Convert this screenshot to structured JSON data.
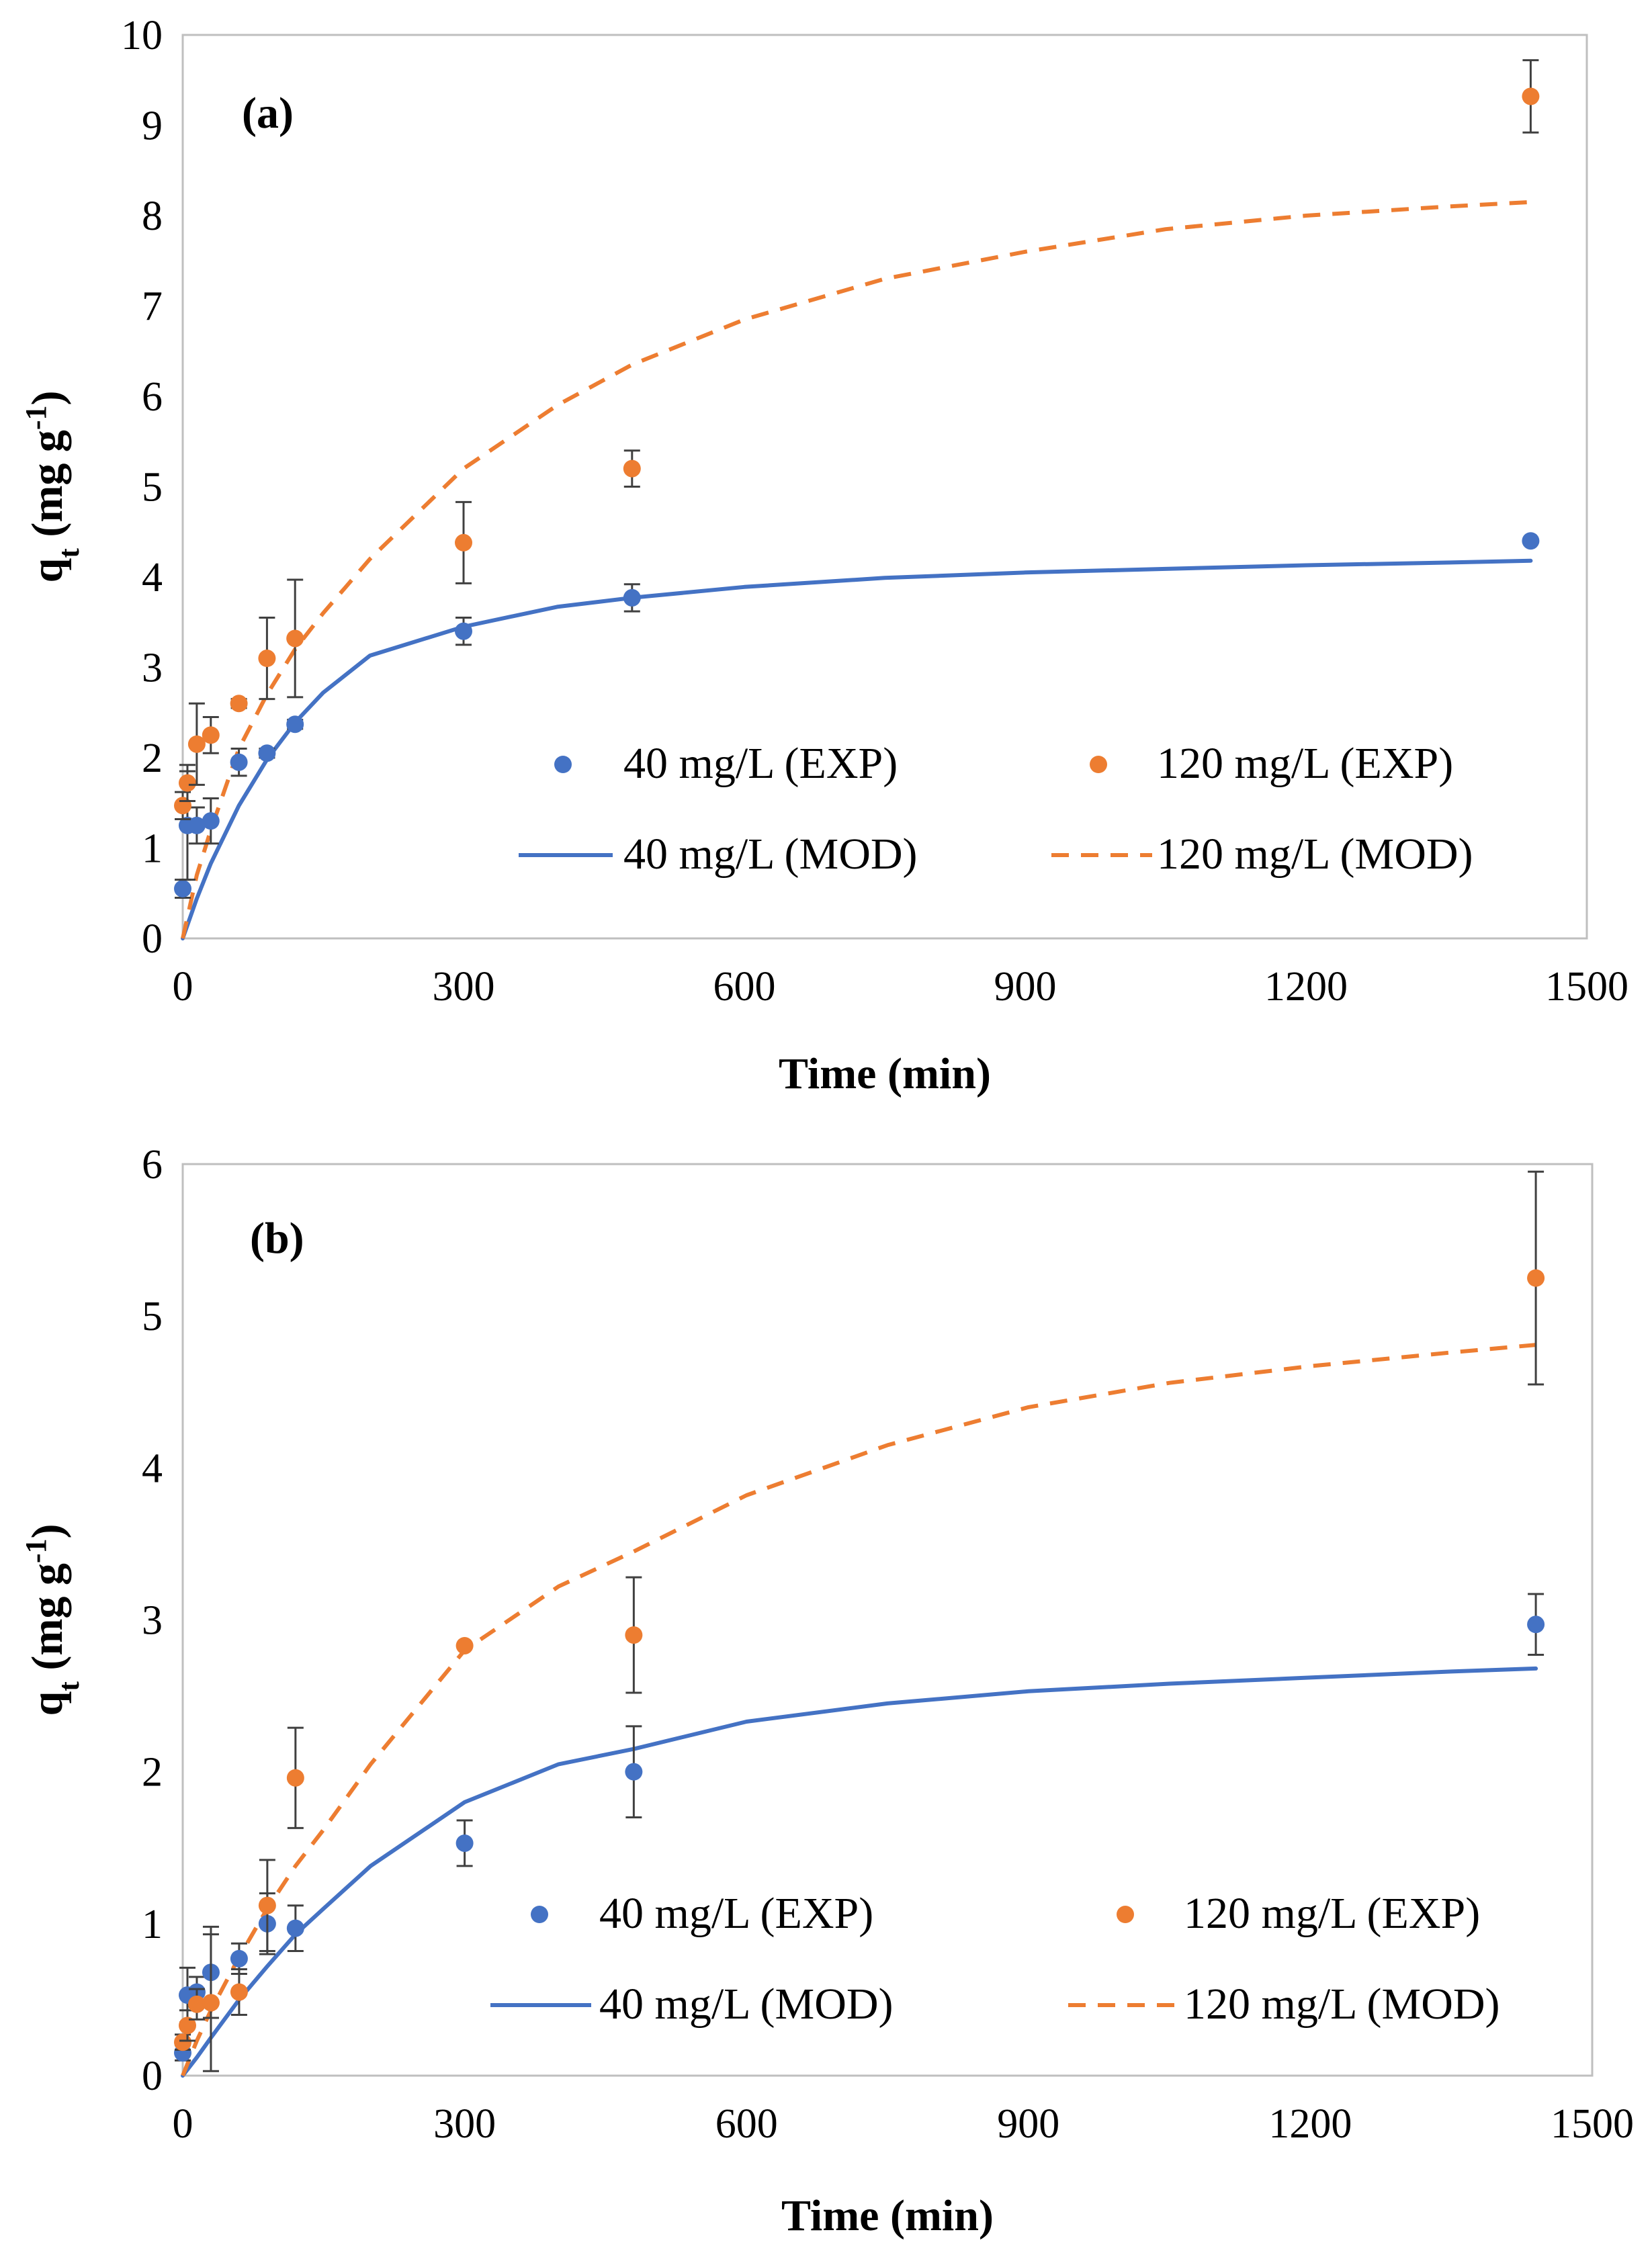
{
  "chart_data": [
    {
      "type": "scatter",
      "panel_label": "(a)",
      "xlabel": "Time (min)",
      "ylabel": "qt (mg g-1)",
      "ylabel_main": "q",
      "ylabel_sub": "t",
      "ylabel_rest": " (mg g",
      "ylabel_sup": "-1",
      "ylabel_close": ")",
      "xlim": [
        0,
        1500
      ],
      "ylim": [
        0,
        10
      ],
      "xticks": [
        0,
        300,
        600,
        900,
        1200,
        1500
      ],
      "yticks": [
        0,
        1,
        2,
        3,
        4,
        5,
        6,
        7,
        8,
        9,
        10
      ],
      "grid": false,
      "legend_position": "lower-right",
      "legend": [
        "40 mg/L (EXP)",
        "120 mg/L (EXP)",
        "40 mg/L (MOD)",
        "120 mg/L (MOD)"
      ],
      "series": [
        {
          "name": "40 mg/L (EXP)",
          "kind": "points",
          "color": "#4472c4",
          "points": [
            {
              "x": 0,
              "y": 0.55,
              "err": 0.1
            },
            {
              "x": 5,
              "y": 1.25,
              "err": 0.6
            },
            {
              "x": 15,
              "y": 1.25,
              "err": 0.2
            },
            {
              "x": 30,
              "y": 1.3,
              "err": 0.25
            },
            {
              "x": 60,
              "y": 1.95,
              "err": 0.15
            },
            {
              "x": 90,
              "y": 2.05,
              "err": 0.05
            },
            {
              "x": 120,
              "y": 2.37,
              "err": 0.05
            },
            {
              "x": 300,
              "y": 3.4,
              "err": 0.15
            },
            {
              "x": 480,
              "y": 3.77,
              "err": 0.15
            },
            {
              "x": 1440,
              "y": 4.4,
              "err": 0
            }
          ]
        },
        {
          "name": "120 mg/L (EXP)",
          "kind": "points",
          "color": "#ed7d31",
          "points": [
            {
              "x": 0,
              "y": 1.47,
              "err": 0.15
            },
            {
              "x": 5,
              "y": 1.72,
              "err": 0.2
            },
            {
              "x": 15,
              "y": 2.15,
              "err": 0.45
            },
            {
              "x": 30,
              "y": 2.25,
              "err": 0.2
            },
            {
              "x": 60,
              "y": 2.6,
              "err": 0.05
            },
            {
              "x": 90,
              "y": 3.1,
              "err": 0.45
            },
            {
              "x": 120,
              "y": 3.32,
              "err": 0.65
            },
            {
              "x": 300,
              "y": 4.38,
              "err": 0.45
            },
            {
              "x": 480,
              "y": 5.2,
              "err": 0.2
            },
            {
              "x": 1440,
              "y": 9.32,
              "err": 0.4
            }
          ]
        },
        {
          "name": "40 mg/L (MOD)",
          "kind": "curve",
          "style": "solid",
          "color": "#4472c4",
          "x": [
            0,
            15,
            30,
            60,
            90,
            120,
            150,
            200,
            300,
            400,
            480,
            600,
            750,
            900,
            1050,
            1200,
            1350,
            1440
          ],
          "y": [
            0.0,
            0.44,
            0.83,
            1.47,
            1.98,
            2.39,
            2.72,
            3.13,
            3.45,
            3.67,
            3.77,
            3.89,
            3.99,
            4.05,
            4.09,
            4.13,
            4.16,
            4.18
          ]
        },
        {
          "name": "120 mg/L (MOD)",
          "kind": "curve",
          "style": "dashed",
          "color": "#ed7d31",
          "x": [
            0,
            15,
            30,
            60,
            90,
            120,
            150,
            200,
            300,
            400,
            480,
            600,
            750,
            900,
            1050,
            1200,
            1350,
            1440
          ],
          "y": [
            0.0,
            0.7,
            1.2,
            2.1,
            2.7,
            3.2,
            3.6,
            4.2,
            5.2,
            5.9,
            6.35,
            6.85,
            7.3,
            7.6,
            7.85,
            8.0,
            8.1,
            8.15
          ]
        }
      ]
    },
    {
      "type": "scatter",
      "panel_label": "(b)",
      "xlabel": "Time (min)",
      "ylabel": "qt (mg g-1)",
      "ylabel_main": "q",
      "ylabel_sub": "t",
      "ylabel_rest": " (mg g",
      "ylabel_sup": "-1",
      "ylabel_close": ")",
      "xlim": [
        0,
        1500
      ],
      "ylim": [
        0,
        6
      ],
      "xticks": [
        0,
        300,
        600,
        900,
        1200,
        1500
      ],
      "yticks": [
        0,
        1,
        2,
        3,
        4,
        5,
        6
      ],
      "grid": false,
      "legend_position": "lower-right",
      "legend": [
        "40 mg/L (EXP)",
        "120 mg/L (EXP)",
        "40 mg/L (MOD)",
        "120 mg/L (MOD)"
      ],
      "series": [
        {
          "name": "40 mg/L (EXP)",
          "kind": "points",
          "color": "#4472c4",
          "points": [
            {
              "x": 0,
              "y": 0.15,
              "err": 0.05
            },
            {
              "x": 5,
              "y": 0.53,
              "err": 0.18
            },
            {
              "x": 15,
              "y": 0.55,
              "err": 0.1
            },
            {
              "x": 30,
              "y": 0.68,
              "err": 0.3
            },
            {
              "x": 60,
              "y": 0.77,
              "err": 0.1
            },
            {
              "x": 90,
              "y": 1.0,
              "err": 0.2
            },
            {
              "x": 120,
              "y": 0.97,
              "err": 0.15
            },
            {
              "x": 300,
              "y": 1.53,
              "err": 0.15
            },
            {
              "x": 480,
              "y": 2.0,
              "err": 0.3
            },
            {
              "x": 1440,
              "y": 2.97,
              "err": 0.2
            }
          ]
        },
        {
          "name": "120 mg/L (EXP)",
          "kind": "points",
          "color": "#ed7d31",
          "points": [
            {
              "x": 0,
              "y": 0.22,
              "err": 0.05
            },
            {
              "x": 5,
              "y": 0.33,
              "err": 0.1
            },
            {
              "x": 15,
              "y": 0.47,
              "err": 0.1
            },
            {
              "x": 30,
              "y": 0.48,
              "err": 0.45
            },
            {
              "x": 60,
              "y": 0.55,
              "err": 0.15
            },
            {
              "x": 90,
              "y": 1.12,
              "err": 0.3
            },
            {
              "x": 120,
              "y": 1.96,
              "err": 0.33
            },
            {
              "x": 300,
              "y": 2.83,
              "err": 0
            },
            {
              "x": 480,
              "y": 2.9,
              "err": 0.38
            },
            {
              "x": 1440,
              "y": 5.25,
              "err": 0.7
            }
          ]
        },
        {
          "name": "40 mg/L (MOD)",
          "kind": "curve",
          "style": "solid",
          "color": "#4472c4",
          "x": [
            0,
            15,
            30,
            60,
            90,
            120,
            150,
            200,
            300,
            400,
            480,
            600,
            750,
            900,
            1050,
            1200,
            1350,
            1440
          ],
          "y": [
            0.0,
            0.12,
            0.25,
            0.5,
            0.72,
            0.93,
            1.1,
            1.38,
            1.8,
            2.05,
            2.15,
            2.33,
            2.45,
            2.53,
            2.58,
            2.62,
            2.66,
            2.68
          ]
        },
        {
          "name": "120 mg/L (MOD)",
          "kind": "curve",
          "style": "dashed",
          "color": "#ed7d31",
          "x": [
            0,
            15,
            30,
            60,
            90,
            120,
            150,
            200,
            300,
            400,
            480,
            600,
            750,
            900,
            1050,
            1200,
            1350,
            1440
          ],
          "y": [
            0.0,
            0.23,
            0.43,
            0.78,
            1.1,
            1.38,
            1.62,
            2.05,
            2.8,
            3.22,
            3.45,
            3.82,
            4.15,
            4.4,
            4.56,
            4.67,
            4.76,
            4.81
          ]
        }
      ]
    }
  ]
}
